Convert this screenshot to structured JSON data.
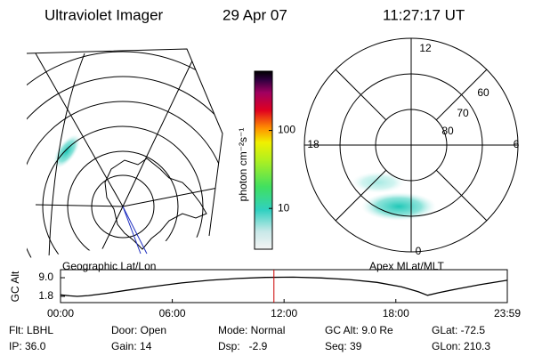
{
  "header": {
    "title": "Ultraviolet Imager",
    "date": "29 Apr 07",
    "time": "11:27:17 UT"
  },
  "left_map": {
    "label": "Geographic Lat/Lon"
  },
  "right_map": {
    "label": "Apex MLat/MLT",
    "mlt_labels": [
      "12",
      "18",
      "6",
      "0"
    ],
    "lat_labels": [
      "80",
      "70",
      "60"
    ]
  },
  "colorbar": {
    "label": "photon cm⁻²s⁻¹",
    "log": true,
    "ylim": [
      3,
      575
    ],
    "yticks": [
      {
        "value": 10,
        "label": "10"
      },
      {
        "value": 100,
        "label": "100"
      }
    ]
  },
  "chart_data": {
    "type": "line",
    "y_label": "GC Alt",
    "xlim": [
      0,
      23.983
    ],
    "ylim": [
      -0.6,
      12.1
    ],
    "xticks": [
      {
        "value": 0,
        "label": "00:00"
      },
      {
        "value": 6,
        "label": "06:00"
      },
      {
        "value": 12,
        "label": "12:00"
      },
      {
        "value": 18,
        "label": "18:00"
      },
      {
        "value": 23.983,
        "label": "23:59"
      }
    ],
    "yticks": [
      {
        "value": 1.8,
        "label": "1.8"
      },
      {
        "value": 9.0,
        "label": "9.0"
      }
    ],
    "x": [
      0,
      0.5,
      0.9,
      1.5,
      2.5,
      3.5,
      5,
      6.5,
      8,
      9.5,
      11,
      12.5,
      14,
      15.5,
      17,
      18.3,
      19.2,
      19.7,
      20.3,
      21.3,
      22.5,
      23.983
    ],
    "series": [
      {
        "color": "#000000",
        "values": [
          2.4,
          2.0,
          1.8,
          2.1,
          3.0,
          4.1,
          5.6,
          7.0,
          8.0,
          8.7,
          9.1,
          9.2,
          8.9,
          8.3,
          7.2,
          5.5,
          3.6,
          2.2,
          3.2,
          4.7,
          6.3,
          8.0
        ]
      }
    ],
    "marker": {
      "x": 11.455,
      "color": "#cc0000"
    }
  },
  "footer": {
    "rows": [
      [
        "Flt: LBHL",
        "Door: Open",
        "Mode: Normal",
        "GC Alt: 9.0 Re",
        "GLat: -72.5"
      ],
      [
        "IP: 36.0",
        "Gain: 14",
        "Dsp:   -2.9",
        "Seq: 39",
        "GLon: 210.3"
      ]
    ]
  }
}
